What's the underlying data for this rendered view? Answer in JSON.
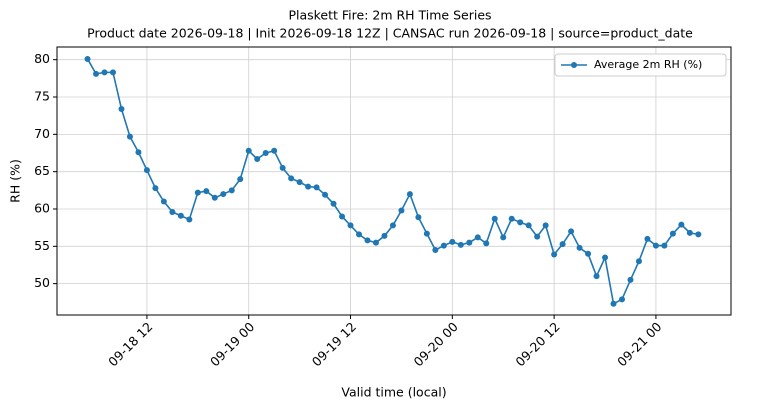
{
  "chart_data": {
    "type": "line",
    "title": "Plaskett Fire: 2m RH Time Series",
    "subtitle": "Product date 2026-09-18 | Init 2026-09-18 12Z | CANSAC run 2026-09-18 | source=product_date",
    "x_label": "Valid time (local)",
    "y_label": "RH (%)",
    "x": [
      "09-18 05",
      "09-18 06",
      "09-18 07",
      "09-18 08",
      "09-18 09",
      "09-18 10",
      "09-18 11",
      "09-18 12",
      "09-18 13",
      "09-18 14",
      "09-18 15",
      "09-18 16",
      "09-18 17",
      "09-18 18",
      "09-18 19",
      "09-18 20",
      "09-18 21",
      "09-18 22",
      "09-18 23",
      "09-19 00",
      "09-19 01",
      "09-19 02",
      "09-19 03",
      "09-19 04",
      "09-19 05",
      "09-19 06",
      "09-19 07",
      "09-19 08",
      "09-19 09",
      "09-19 10",
      "09-19 11",
      "09-19 12",
      "09-19 13",
      "09-19 14",
      "09-19 15",
      "09-19 16",
      "09-19 17",
      "09-19 18",
      "09-19 19",
      "09-19 20",
      "09-19 21",
      "09-19 22",
      "09-19 23",
      "09-20 00",
      "09-20 01",
      "09-20 02",
      "09-20 03",
      "09-20 04",
      "09-20 05",
      "09-20 06",
      "09-20 07",
      "09-20 08",
      "09-20 09",
      "09-20 10",
      "09-20 11",
      "09-20 12",
      "09-20 13",
      "09-20 14",
      "09-20 15",
      "09-20 16",
      "09-20 17",
      "09-20 18",
      "09-20 19",
      "09-20 20",
      "09-20 21",
      "09-20 22",
      "09-20 23",
      "09-21 00",
      "09-21 01",
      "09-21 02",
      "09-21 03",
      "09-21 04",
      "09-21 05"
    ],
    "series": [
      {
        "name": "Average 2m RH (%)",
        "color": "#1f77b4",
        "values": [
          80.1,
          78.1,
          78.3,
          78.3,
          73.4,
          69.7,
          67.6,
          65.2,
          62.8,
          61.0,
          59.6,
          59.1,
          58.6,
          62.2,
          62.4,
          61.5,
          62.0,
          62.5,
          64.0,
          67.8,
          66.7,
          67.5,
          67.8,
          65.5,
          64.1,
          63.6,
          63.0,
          62.9,
          61.9,
          60.7,
          59.0,
          57.8,
          56.6,
          55.8,
          55.5,
          56.4,
          57.8,
          59.8,
          62.0,
          58.9,
          56.7,
          54.5,
          55.1,
          55.6,
          55.2,
          55.5,
          56.2,
          55.4,
          58.7,
          56.2,
          58.7,
          58.2,
          57.8,
          56.3,
          57.8,
          53.9,
          55.3,
          57.0,
          54.8,
          54.0,
          51.0,
          53.5,
          47.3,
          47.9,
          50.5,
          53.0,
          56.0,
          55.1,
          55.1,
          56.7,
          57.9,
          56.8,
          56.6
        ]
      }
    ],
    "xlim": [
      "09-18 01:24",
      "09-21 08:51"
    ],
    "xticks": [
      "09-18 12",
      "09-19 00",
      "09-19 12",
      "09-20 00",
      "09-20 12",
      "09-21 00"
    ],
    "ylim": [
      45.8,
      81.7
    ],
    "yticks": [
      50,
      55,
      60,
      65,
      70,
      75,
      80
    ],
    "grid": true,
    "legend": "upper right"
  }
}
